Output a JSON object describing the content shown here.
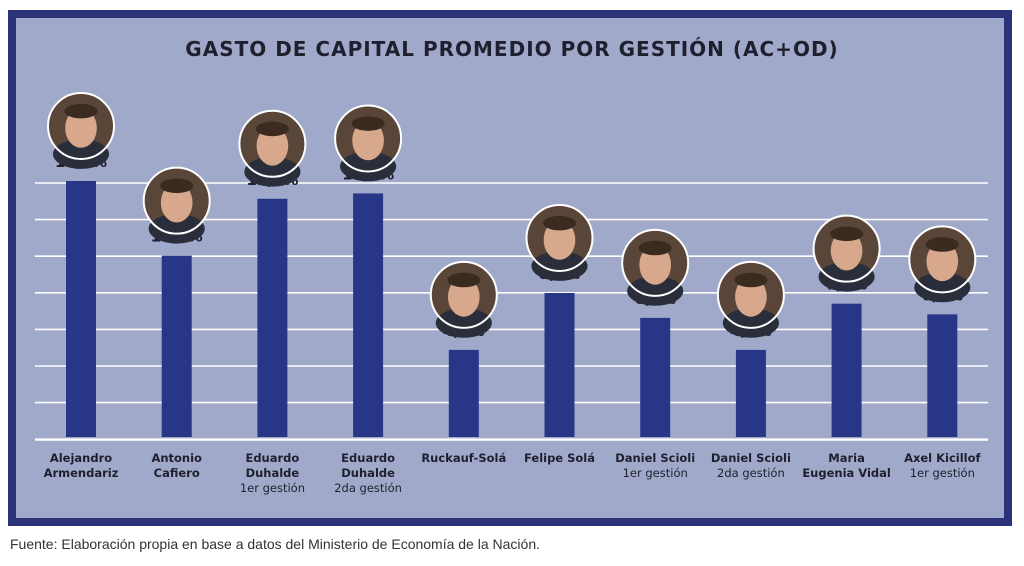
{
  "colors": {
    "frame": "#2b3378",
    "panel": "#a1a9cb",
    "bar": "#283687",
    "gridline": "#ffffff",
    "text": "#1f1f2e"
  },
  "source": "Fuente: Elaboración propia en base a datos del Ministerio de Economía de la Nación.",
  "chart_data": {
    "type": "bar",
    "title": "GASTO DE CAPITAL PROMEDIO POR GESTIÓN (AC+OD)",
    "categories": [
      {
        "name": [
          "Alejandro",
          "Armendariz"
        ],
        "sub": ""
      },
      {
        "name": [
          "Antonio",
          "Cafiero"
        ],
        "sub": ""
      },
      {
        "name": [
          "Eduardo",
          "Duhalde"
        ],
        "sub": "1er gestión"
      },
      {
        "name": [
          "Eduardo",
          "Duhalde"
        ],
        "sub": "2da gestión"
      },
      {
        "name": [
          "Ruckauf-Solá"
        ],
        "sub": ""
      },
      {
        "name": [
          "Felipe Solá"
        ],
        "sub": ""
      },
      {
        "name": [
          "Daniel Scioli"
        ],
        "sub": "1er gestión"
      },
      {
        "name": [
          "Daniel Scioli"
        ],
        "sub": "2da gestión"
      },
      {
        "name": [
          "Maria",
          "Eugenia Vidal"
        ],
        "sub": ""
      },
      {
        "name": [
          "Axel Kicillof"
        ],
        "sub": "1er gestión"
      }
    ],
    "values": [
      14.4,
      10.2,
      13.4,
      13.7,
      4.9,
      8.1,
      6.7,
      4.9,
      7.5,
      6.9
    ],
    "value_labels": [
      "14,4%",
      "10,2%",
      "13,4%",
      "13,7%",
      "4,9%",
      "8,1%",
      "6,7%",
      "4,9%",
      "7,5%",
      "6,9%"
    ],
    "ylim": [
      0,
      16
    ],
    "grid": true,
    "images": "circular portrait photo above each bar",
    "legend": "none"
  }
}
